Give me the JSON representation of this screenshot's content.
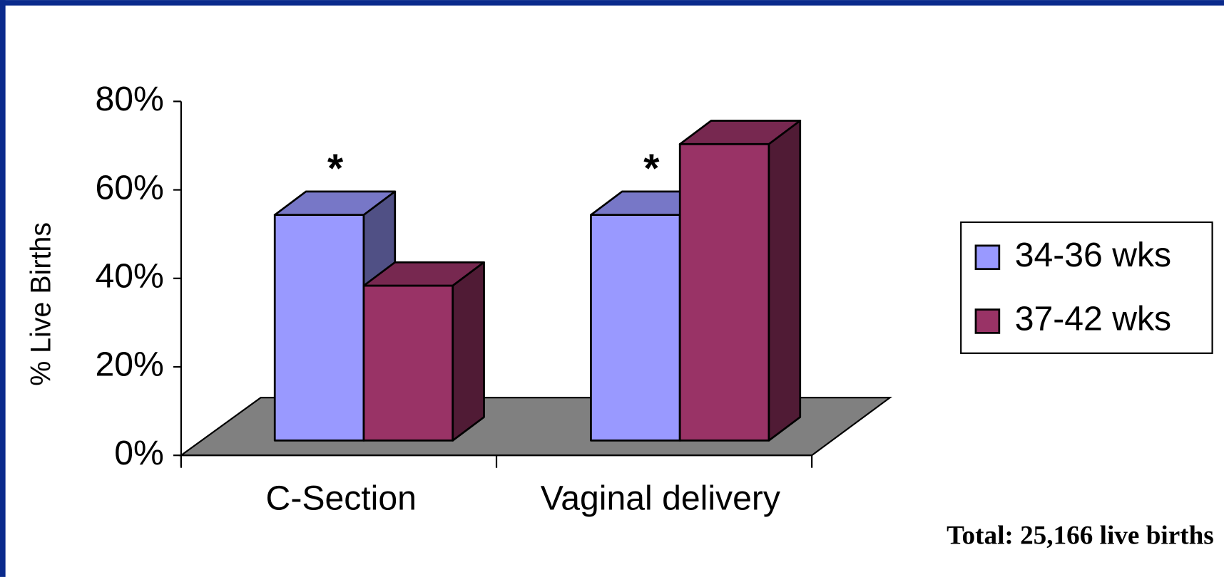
{
  "chart_data": {
    "type": "bar3d",
    "y_label": "% Live Births",
    "categories": [
      "C-Section",
      "Vaginal delivery"
    ],
    "series": [
      {
        "name": "34-36 wks",
        "color": "#9999ff",
        "values": [
          51,
          51
        ]
      },
      {
        "name": "37-42 wks",
        "color": "#993366",
        "values": [
          35,
          67
        ]
      }
    ],
    "ylim": [
      0,
      80
    ],
    "yticks": [
      {
        "value": 0,
        "label": "0%"
      },
      {
        "value": 20,
        "label": "20%"
      },
      {
        "value": 40,
        "label": "40%"
      },
      {
        "value": 60,
        "label": "60%"
      },
      {
        "value": 80,
        "label": "80%"
      }
    ],
    "annotations": [
      {
        "text": "*"
      },
      {
        "text": "*"
      }
    ],
    "legend": "right",
    "footnote": "Total: 25,166 live births"
  }
}
